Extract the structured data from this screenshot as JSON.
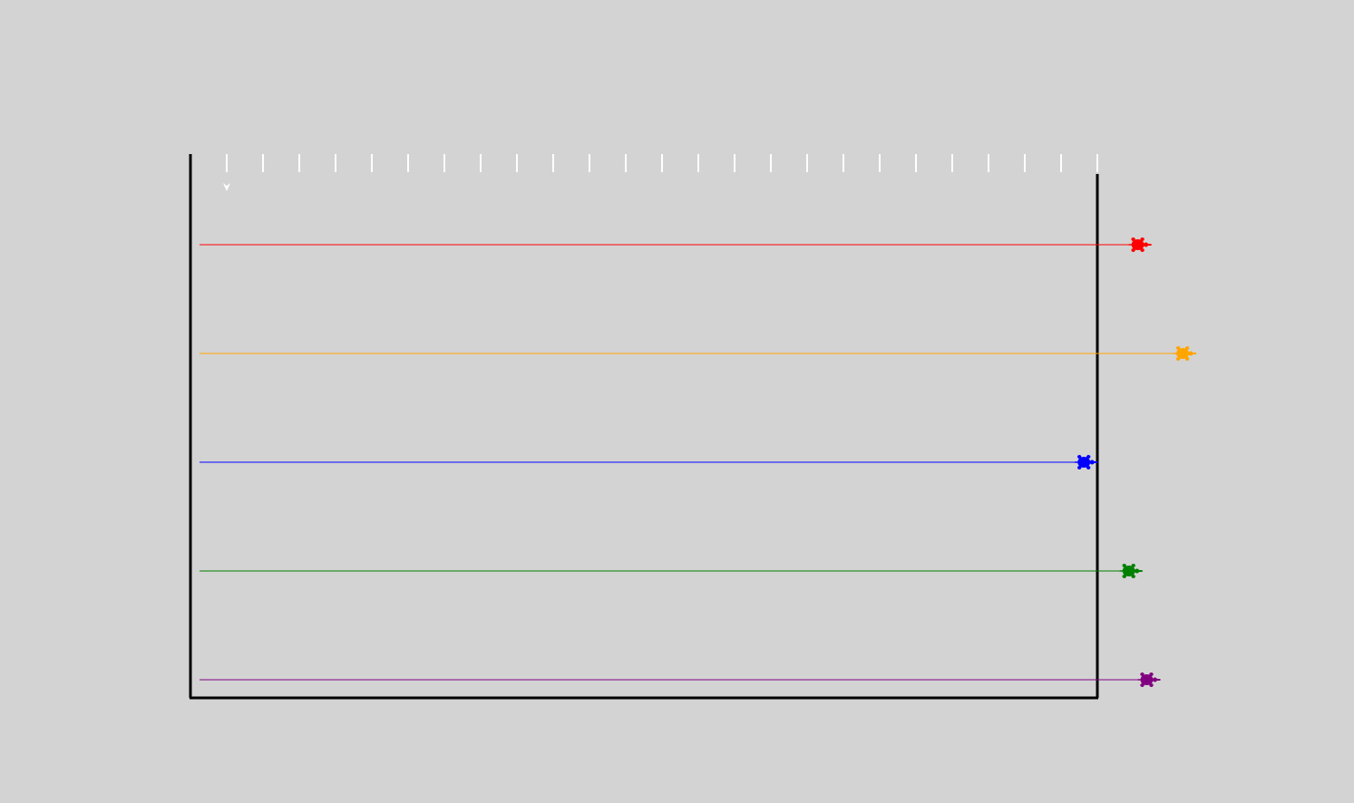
{
  "scene": {
    "background_color": "#d3d3d3",
    "arena_border_color": "#000000",
    "tick_color": "#ffffff",
    "tick_count": 25,
    "cursor_turtle": {
      "icon": "white-arrow-turtle-cursor",
      "color": "#ffffff"
    }
  },
  "race": {
    "turtles": [
      {
        "name": "red",
        "color": "#ff0000",
        "progress": 1.04
      },
      {
        "name": "orange",
        "color": "#ffa500",
        "progress": 1.09
      },
      {
        "name": "blue",
        "color": "#0000ff",
        "progress": 0.98
      },
      {
        "name": "green",
        "color": "#008000",
        "progress": 1.03
      },
      {
        "name": "purple",
        "color": "#800080",
        "progress": 1.05
      }
    ]
  }
}
